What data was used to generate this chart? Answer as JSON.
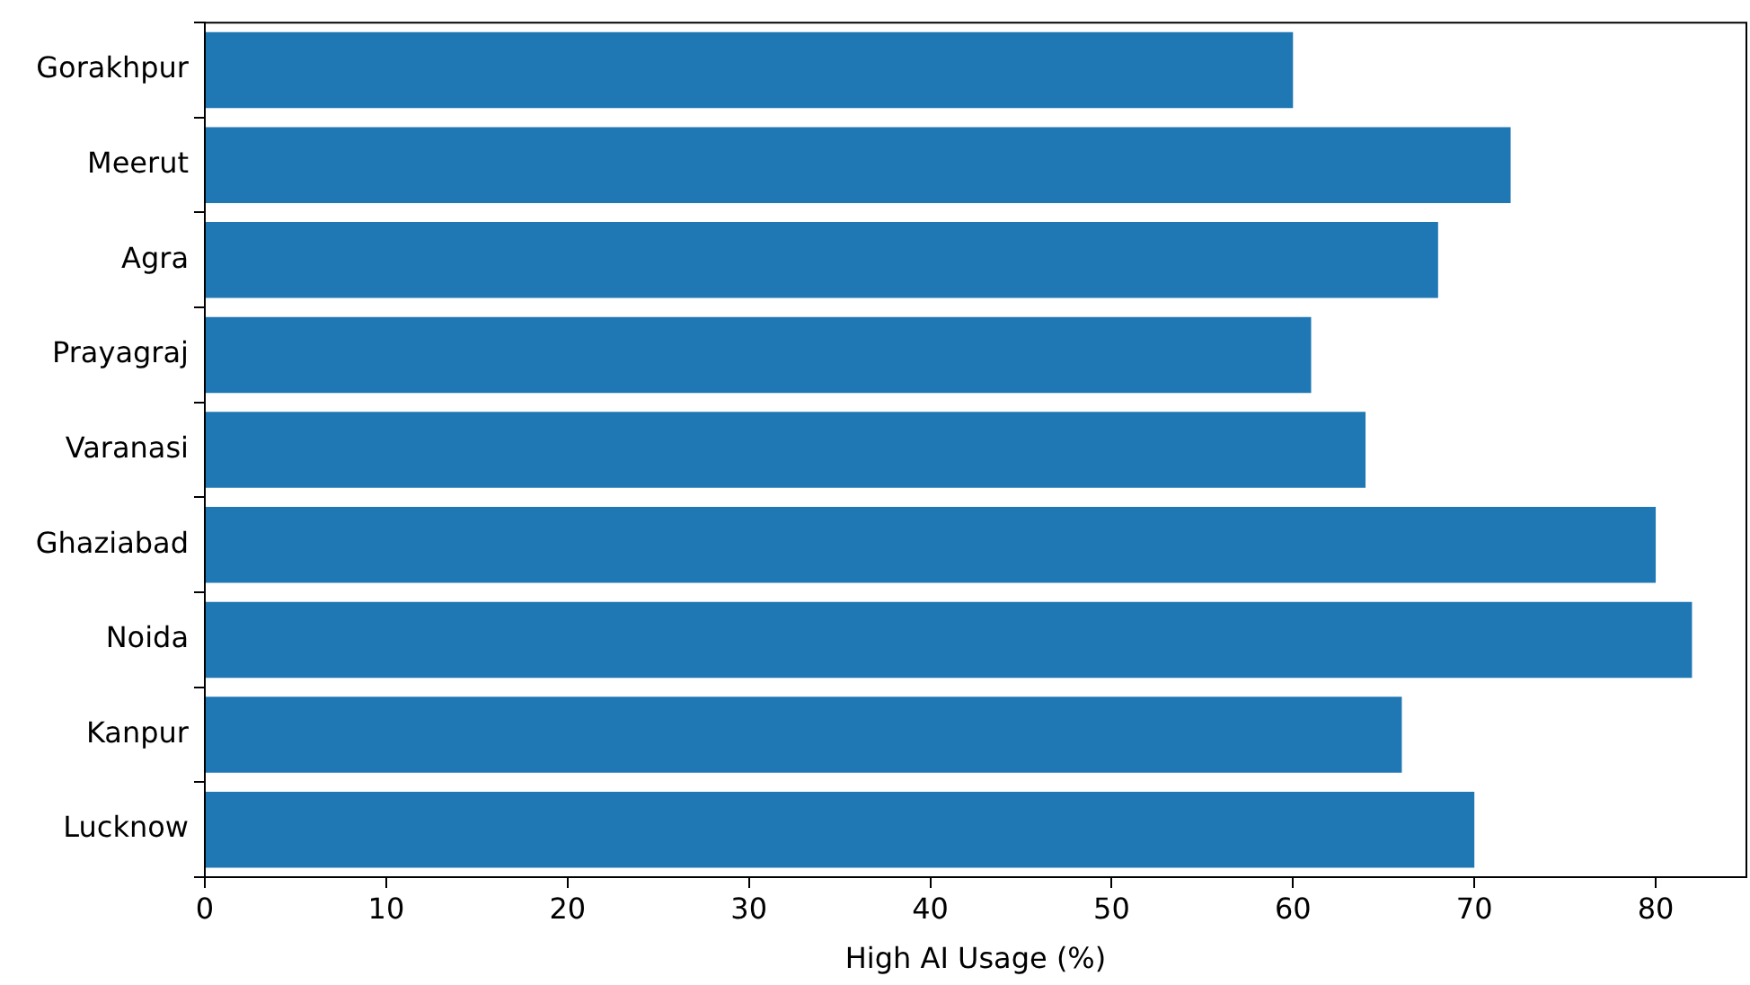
{
  "chart_data": {
    "type": "bar",
    "orientation": "horizontal",
    "xlabel": "High AI Usage (%)",
    "categories": [
      "Gorakhpur",
      "Meerut",
      "Agra",
      "Prayagraj",
      "Varanasi",
      "Ghaziabad",
      "Noida",
      "Kanpur",
      "Lucknow"
    ],
    "values": [
      60,
      72,
      68,
      61,
      64,
      80,
      82,
      66,
      70
    ],
    "color": "#1f77b4",
    "xlim": [
      0,
      85
    ],
    "xticks": [
      0,
      10,
      20,
      30,
      40,
      50,
      60,
      70,
      80
    ],
    "grid": false,
    "legend": false
  }
}
